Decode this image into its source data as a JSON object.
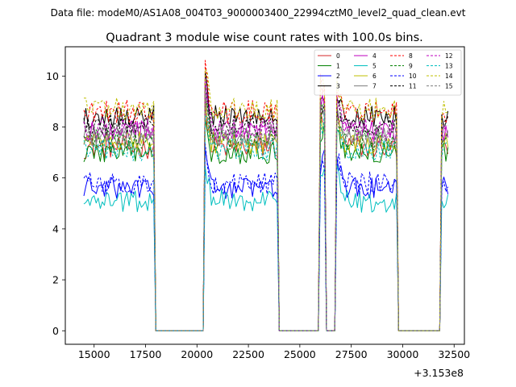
{
  "figure": {
    "suptitle": "Data file: modeM0/AS1A08_004T03_9000003400_22994cztM0_level2_quad_clean.evt"
  },
  "chart_data": {
    "type": "line",
    "title": "Quadrant 3 module wise count rates with 100.0s bins.",
    "xlabel": "",
    "ylabel": "",
    "x_offset_label": "+3.153e8",
    "xlim": [
      13600,
      33000
    ],
    "ylim": [
      -0.53,
      11.15
    ],
    "x_ticks": [
      15000,
      17500,
      20000,
      22500,
      25000,
      27500,
      30000,
      32500
    ],
    "x_tick_labels": [
      "15000",
      "17500",
      "20000",
      "22500",
      "25000",
      "27500",
      "30000",
      "32500"
    ],
    "y_ticks": [
      0,
      2,
      4,
      6,
      8,
      10
    ],
    "y_tick_labels": [
      "0",
      "2",
      "4",
      "6",
      "8",
      "10"
    ],
    "grid": false,
    "legend_position": "top-right",
    "legend_columns": 4,
    "segments": [
      {
        "start": 14500,
        "end": 17900
      },
      {
        "start": 20400,
        "end": 23900
      },
      {
        "start": 25950,
        "end": 26250
      },
      {
        "start": 26750,
        "end": 29700
      },
      {
        "start": 31900,
        "end": 32250
      }
    ],
    "series": [
      {
        "name": "0",
        "color": "#d62728",
        "dash": "solid",
        "level": 7.2
      },
      {
        "name": "1",
        "color": "#008000",
        "dash": "solid",
        "level": 7.0
      },
      {
        "name": "2",
        "color": "#0000ff",
        "dash": "solid",
        "level": 5.6
      },
      {
        "name": "3",
        "color": "#000000",
        "dash": "solid",
        "level": 8.4
      },
      {
        "name": "4",
        "color": "#bf00bf",
        "dash": "solid",
        "level": 7.8
      },
      {
        "name": "5",
        "color": "#00bfbf",
        "dash": "solid",
        "level": 5.1
      },
      {
        "name": "6",
        "color": "#bfbf00",
        "dash": "solid",
        "level": 7.4
      },
      {
        "name": "7",
        "color": "#808080",
        "dash": "solid",
        "level": 7.6
      },
      {
        "name": "8",
        "color": "#ff0000",
        "dash": "dashed",
        "level": 8.6
      },
      {
        "name": "9",
        "color": "#008000",
        "dash": "dashed",
        "level": 7.5
      },
      {
        "name": "10",
        "color": "#0000ff",
        "dash": "dashed",
        "level": 5.8
      },
      {
        "name": "11",
        "color": "#000000",
        "dash": "dashed",
        "level": 8.1
      },
      {
        "name": "12",
        "color": "#bf00bf",
        "dash": "dashed",
        "level": 7.9
      },
      {
        "name": "13",
        "color": "#00bfbf",
        "dash": "dashed",
        "level": 7.1
      },
      {
        "name": "14",
        "color": "#bfbf00",
        "dash": "dashed",
        "level": 8.7
      },
      {
        "name": "15",
        "color": "#808080",
        "dash": "dashed",
        "level": 7.7
      }
    ]
  }
}
